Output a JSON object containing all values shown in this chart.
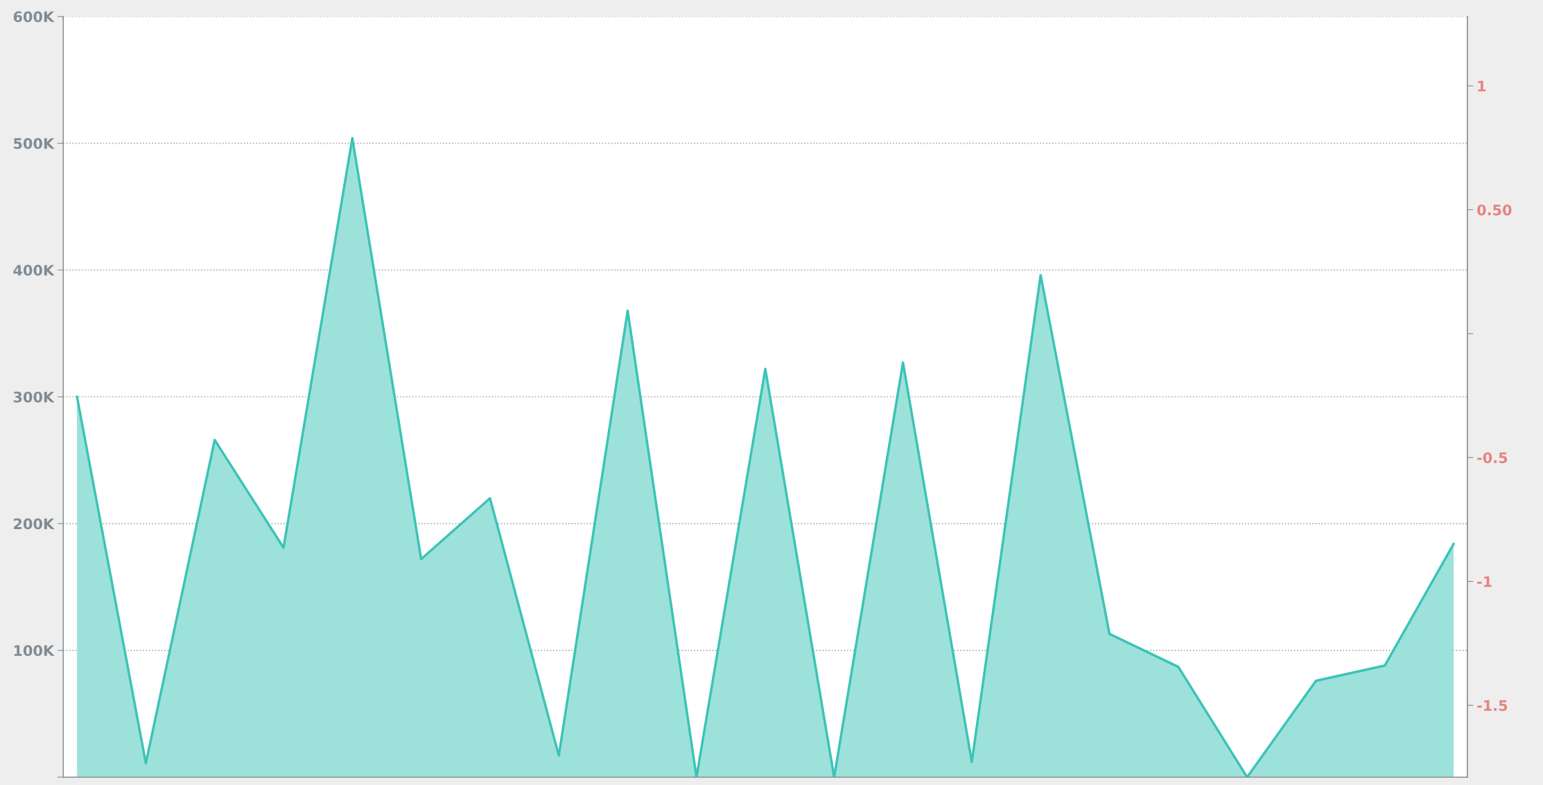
{
  "chart_data": {
    "type": "area",
    "categories": [
      null,
      null,
      null,
      null,
      null,
      null,
      null,
      null,
      null,
      null,
      null,
      null,
      null,
      null,
      null,
      null,
      null,
      null,
      null,
      null,
      null
    ],
    "series": [
      {
        "color": "#9de1db",
        "values": [
          300000,
          11000,
          266000,
          181000,
          504000,
          172000,
          220000,
          17000,
          368000,
          0,
          322000,
          0,
          327000,
          12000,
          396000,
          113000,
          87000,
          0,
          76000,
          88000,
          184000
        ]
      }
    ],
    "ylim": [
      0,
      600000
    ],
    "yticks": [
      {
        "value": 0,
        "label": null
      },
      {
        "value": 100000,
        "label": "100K"
      },
      {
        "value": 200000,
        "label": "200K"
      },
      {
        "value": 300000,
        "label": "300K"
      },
      {
        "value": 400000,
        "label": "400K"
      },
      {
        "value": 500000,
        "label": "500K"
      },
      {
        "value": 600000,
        "label": "600K"
      }
    ],
    "y2lim": [
      -1.79,
      1.28
    ],
    "y2ticks": [
      -1.5,
      -1,
      -0.5,
      {
        "value": 0,
        "label": null
      },
      {
        "value": 0.5,
        "label": "0.50"
      },
      1
    ],
    "grid": "y",
    "line_style": "solid",
    "marker": "none"
  }
}
